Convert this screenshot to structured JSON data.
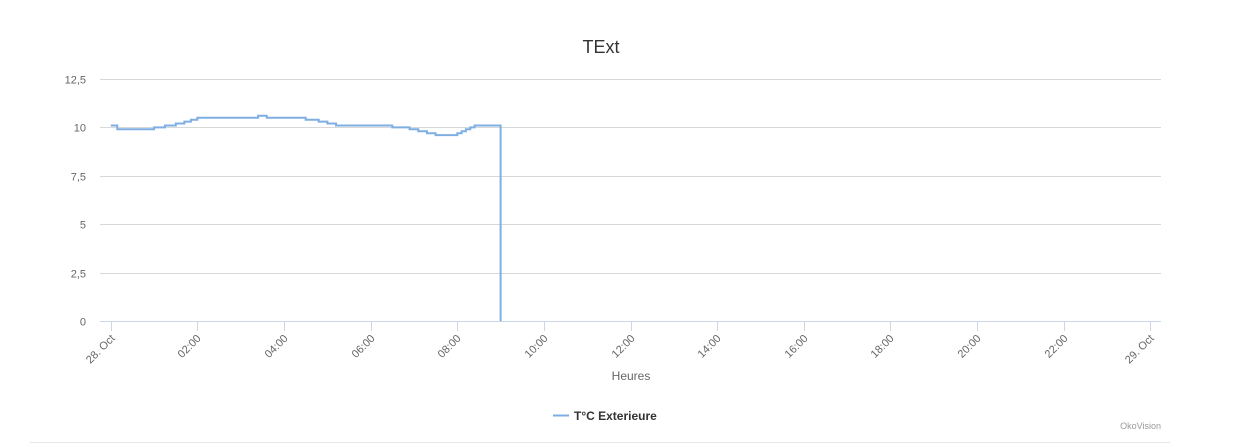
{
  "chart_data": {
    "type": "line",
    "title": "TExt",
    "x_label": "Heures",
    "credit": "OkoVision",
    "xlim": [
      -0.25,
      24.25
    ],
    "xticks": [
      {
        "value": 0,
        "label": "28. Oct"
      },
      {
        "value": 2,
        "label": "02:00"
      },
      {
        "value": 4,
        "label": "04:00"
      },
      {
        "value": 6,
        "label": "06:00"
      },
      {
        "value": 8,
        "label": "08:00"
      },
      {
        "value": 10,
        "label": "10:00"
      },
      {
        "value": 12,
        "label": "12:00"
      },
      {
        "value": 14,
        "label": "14:00"
      },
      {
        "value": 16,
        "label": "16:00"
      },
      {
        "value": 18,
        "label": "18:00"
      },
      {
        "value": 20,
        "label": "20:00"
      },
      {
        "value": 22,
        "label": "22:00"
      },
      {
        "value": 24,
        "label": "29. Oct"
      }
    ],
    "ylim": [
      0,
      12.5
    ],
    "yticks": [
      0,
      {
        "value": 2.5,
        "label": "2,5"
      },
      5,
      {
        "value": 7.5,
        "label": "7,5"
      },
      10,
      {
        "value": 12.5,
        "label": "12,5"
      }
    ],
    "grid": true,
    "legend": "bottom",
    "series": [
      {
        "name": "T°C Exterieure",
        "color": "#7faee3",
        "x": [
          0,
          0.15,
          0.15,
          1.0,
          1.0,
          1.25,
          1.25,
          1.5,
          1.5,
          1.7,
          1.7,
          1.85,
          1.85,
          2.0,
          2.0,
          3.4,
          3.4,
          3.6,
          3.6,
          4.5,
          4.5,
          4.8,
          4.8,
          5.0,
          5.0,
          5.2,
          5.2,
          6.5,
          6.5,
          6.9,
          6.9,
          7.1,
          7.1,
          7.3,
          7.3,
          7.5,
          7.5,
          8.0,
          8.0,
          8.1,
          8.1,
          8.2,
          8.2,
          8.3,
          8.3,
          8.4,
          8.4,
          9.0,
          9.0
        ],
        "values": [
          10.1,
          10.1,
          9.9,
          9.9,
          10.0,
          10.0,
          10.1,
          10.1,
          10.2,
          10.2,
          10.3,
          10.3,
          10.4,
          10.4,
          10.5,
          10.5,
          10.6,
          10.6,
          10.5,
          10.5,
          10.4,
          10.4,
          10.3,
          10.3,
          10.2,
          10.2,
          10.1,
          10.1,
          10.0,
          10.0,
          9.9,
          9.9,
          9.8,
          9.8,
          9.7,
          9.7,
          9.6,
          9.6,
          9.7,
          9.7,
          9.8,
          9.8,
          9.9,
          9.9,
          10.0,
          10.0,
          10.1,
          10.1,
          0
        ]
      }
    ]
  }
}
